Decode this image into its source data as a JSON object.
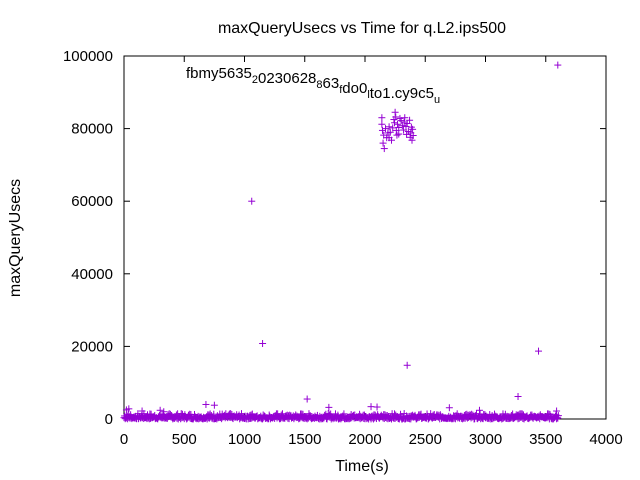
{
  "chart_data": {
    "type": "scatter",
    "title": "maxQueryUsecs vs Time for q.L2.ips500",
    "xlabel": "Time(s)",
    "ylabel": "maxQueryUsecs",
    "xlim": [
      0,
      4000
    ],
    "ylim": [
      0,
      100000
    ],
    "xticks": [
      "0",
      "500",
      "1000",
      "1500",
      "2000",
      "2500",
      "3000",
      "3500",
      "4000"
    ],
    "yticks": [
      "0",
      "20000",
      "40000",
      "60000",
      "80000",
      "100000"
    ],
    "grid": false,
    "legend": "none",
    "marker": "+",
    "color": "#9400d3",
    "annotation": {
      "parts": [
        {
          "text": "fbmy5635",
          "sub": false
        },
        {
          "text": "2",
          "sub": true
        },
        {
          "text": "0230628",
          "sub": false
        },
        {
          "text": "8",
          "sub": true
        },
        {
          "text": "63",
          "sub": false
        },
        {
          "text": "f",
          "sub": true
        },
        {
          "text": "do0",
          "sub": false
        },
        {
          "text": "l",
          "sub": true
        },
        {
          "text": "to1.cy9c5",
          "sub": false
        },
        {
          "text": "u",
          "sub": true
        }
      ]
    },
    "series": [
      {
        "baseline": {
          "x_start": 0,
          "x_end": 3600,
          "x_step": 10,
          "y_min": 0,
          "y_max": 1500
        },
        "points": [
          [
            20,
            2500
          ],
          [
            40,
            2800
          ],
          [
            150,
            2200
          ],
          [
            300,
            2400
          ],
          [
            330,
            2000
          ],
          [
            680,
            4000
          ],
          [
            750,
            3800
          ],
          [
            1060,
            60000
          ],
          [
            1150,
            20800
          ],
          [
            1520,
            5500
          ],
          [
            1700,
            3200
          ],
          [
            2050,
            3400
          ],
          [
            2100,
            3300
          ],
          [
            2350,
            14800
          ],
          [
            2700,
            3100
          ],
          [
            2950,
            2400
          ],
          [
            3270,
            6200
          ],
          [
            3440,
            18700
          ],
          [
            3600,
            97500
          ],
          [
            3590,
            2200
          ],
          [
            2140,
            83000
          ],
          [
            2140,
            81200
          ],
          [
            2145,
            79500
          ],
          [
            2150,
            76000
          ],
          [
            2155,
            78200
          ],
          [
            2160,
            74500
          ],
          [
            2170,
            80000
          ],
          [
            2180,
            77500
          ],
          [
            2190,
            78800
          ],
          [
            2200,
            80500
          ],
          [
            2210,
            79000
          ],
          [
            2220,
            76800
          ],
          [
            2230,
            80200
          ],
          [
            2240,
            82500
          ],
          [
            2245,
            81600
          ],
          [
            2250,
            84500
          ],
          [
            2255,
            83200
          ],
          [
            2260,
            79500
          ],
          [
            2265,
            78200
          ],
          [
            2270,
            81200
          ],
          [
            2280,
            80300
          ],
          [
            2290,
            82800
          ],
          [
            2300,
            82200
          ],
          [
            2310,
            80800
          ],
          [
            2320,
            79600
          ],
          [
            2325,
            81800
          ],
          [
            2330,
            83000
          ],
          [
            2340,
            80600
          ],
          [
            2345,
            78400
          ],
          [
            2350,
            81400
          ],
          [
            2360,
            79200
          ],
          [
            2370,
            82300
          ],
          [
            2375,
            77600
          ],
          [
            2380,
            78800
          ],
          [
            2385,
            80400
          ],
          [
            2390,
            76800
          ],
          [
            2395,
            79800
          ],
          [
            2400,
            78100
          ],
          [
            2200,
            77500
          ],
          [
            2280,
            78500
          ]
        ]
      }
    ]
  }
}
